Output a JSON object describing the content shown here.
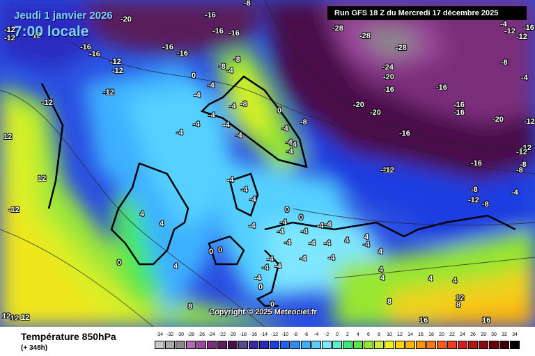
{
  "header": {
    "date": "Jeudi 1 janvier 2026",
    "time": "7:00 locale",
    "run": "Run GFS 18 Z du Mercredi 17 décembre 2025"
  },
  "copyright": "Copyright © 2025 Meteociel.fr",
  "footer": {
    "variable": "Température 850hPa",
    "lead_time": "(+ 348h)"
  },
  "scale": {
    "values": [
      "-34",
      "-32",
      "-30",
      "-28",
      "-26",
      "-24",
      "-22",
      "-20",
      "-18",
      "-16",
      "-14",
      "-12",
      "-10",
      "-8",
      "-6",
      "-4",
      "-2",
      "0",
      "2",
      "4",
      "6",
      "8",
      "10",
      "12",
      "14",
      "16",
      "18",
      "20",
      "22",
      "24",
      "26",
      "28",
      "30",
      "32",
      "34"
    ],
    "colors": [
      "#c8c8c8",
      "#a8a8a8",
      "#8a8a8a",
      "#b469b4",
      "#9a4a9a",
      "#7a2f7a",
      "#5a1f5a",
      "#4a104a",
      "#5a4a8a",
      "#3a2aa0",
      "#2a2ac0",
      "#1e3ee0",
      "#1e64f0",
      "#2d8cff",
      "#3cb0ff",
      "#55d0ff",
      "#7ee6ff",
      "#5af0c8",
      "#3ce678",
      "#5ae646",
      "#96e632",
      "#c8f028",
      "#f0f01e",
      "#ffd214",
      "#ffb40a",
      "#ff960a",
      "#ff7814",
      "#ff5a1e",
      "#f03c1e",
      "#d21e1e",
      "#b41414",
      "#8c0a0a",
      "#6e0000",
      "#3c0000",
      "#000000"
    ]
  },
  "isotherms": [
    {
      "t": "-20"
    },
    {
      "t": "-16"
    },
    {
      "t": "-16"
    },
    {
      "t": "-16"
    },
    {
      "t": "-8"
    },
    {
      "t": "-12"
    },
    {
      "t": "-16"
    },
    {
      "t": "-16"
    },
    {
      "t": "-16"
    },
    {
      "t": "-16"
    },
    {
      "t": "-12"
    },
    {
      "t": "-12"
    },
    {
      "t": "-12"
    },
    {
      "t": "-12"
    },
    {
      "t": "-12"
    },
    {
      "t": "-12"
    },
    {
      "t": "-28"
    },
    {
      "t": "-28"
    },
    {
      "t": "-28"
    },
    {
      "t": "-24"
    },
    {
      "t": "-20"
    },
    {
      "t": "-16"
    },
    {
      "t": "-20"
    },
    {
      "t": "-20"
    },
    {
      "t": "-16"
    },
    {
      "t": "-16"
    },
    {
      "t": "-16"
    },
    {
      "t": "-16"
    },
    {
      "t": "-20"
    },
    {
      "t": "-8"
    },
    {
      "t": "-4"
    },
    {
      "t": "-12"
    },
    {
      "t": "-12"
    },
    {
      "t": "-16"
    },
    {
      "t": "-12"
    },
    {
      "t": "-4"
    },
    {
      "t": "-8"
    },
    {
      "t": "-8"
    },
    {
      "t": "-12"
    },
    {
      "t": "-8"
    },
    {
      "t": "-16"
    },
    {
      "t": "0"
    },
    {
      "t": "-8"
    },
    {
      "t": "-4"
    },
    {
      "t": "-4"
    },
    {
      "t": "-4"
    },
    {
      "t": "-4"
    },
    {
      "t": "-4"
    },
    {
      "t": "-8"
    },
    {
      "t": "-8"
    },
    {
      "t": "-4"
    },
    {
      "t": "-4"
    },
    {
      "t": "-4"
    },
    {
      "t": "-4"
    },
    {
      "t": "-4"
    },
    {
      "t": "-4"
    },
    {
      "t": "0"
    },
    {
      "t": "-4"
    },
    {
      "t": "-4"
    },
    {
      "t": "-8"
    },
    {
      "t": "-4"
    },
    {
      "t": "-4"
    },
    {
      "t": "-4"
    },
    {
      "t": "0"
    },
    {
      "t": "-4"
    },
    {
      "t": "-4"
    },
    {
      "t": "-4"
    },
    {
      "t": "-4"
    },
    {
      "t": "-4"
    },
    {
      "t": "-4"
    },
    {
      "t": "0"
    },
    {
      "t": "-4"
    },
    {
      "t": "-4"
    },
    {
      "t": "-4"
    },
    {
      "t": "-4"
    },
    {
      "t": "-4"
    },
    {
      "t": "-4"
    },
    {
      "t": "-4"
    },
    {
      "t": "0"
    },
    {
      "t": "0"
    },
    {
      "t": "0"
    },
    {
      "t": "-4"
    },
    {
      "t": "-4"
    },
    {
      "t": "0"
    },
    {
      "t": "-4"
    },
    {
      "t": "4"
    },
    {
      "t": "4"
    },
    {
      "t": "4"
    },
    {
      "t": "4"
    },
    {
      "t": "4"
    },
    {
      "t": "4"
    },
    {
      "t": "4"
    },
    {
      "t": "4"
    },
    {
      "t": "8"
    },
    {
      "t": "8"
    },
    {
      "t": "8"
    },
    {
      "t": "12"
    },
    {
      "t": "12"
    },
    {
      "t": "12"
    },
    {
      "t": "12"
    },
    {
      "t": "12"
    },
    {
      "t": "12"
    },
    {
      "t": "16"
    },
    {
      "t": "16"
    },
    {
      "t": "-12"
    },
    {
      "t": "-8"
    },
    {
      "t": "-4"
    },
    {
      "t": "4"
    },
    {
      "t": "4"
    },
    {
      "t": "0"
    },
    {
      "t": "-12"
    },
    {
      "t": "-12"
    },
    {
      "t": "-12"
    },
    {
      "t": "-12"
    }
  ]
}
